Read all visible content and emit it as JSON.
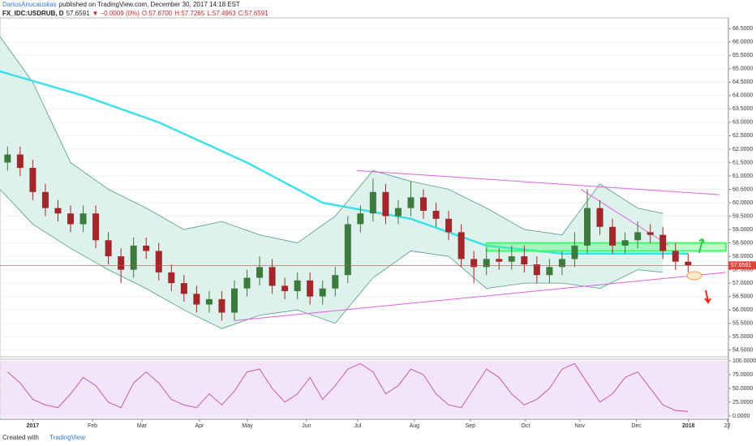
{
  "header": {
    "author": "DariusAnucauskas",
    "published": "published on TradingView.com, December 30, 2017 14:18 EST"
  },
  "symbol_line": {
    "symbol": "FX_IDC:USDRUB, D",
    "last": "57.6591",
    "change": "▼ −0.0009 (0%)",
    "open": "O:57.6700",
    "high": "H:57.7265",
    "low": "L:57.4963",
    "close": "C:57.6591"
  },
  "footer": {
    "created": "Created with",
    "brand": "TradingView"
  },
  "chart_data": [
    {
      "type": "candlestick",
      "up_color": "#3d7a3d",
      "down_color": "#a3262a",
      "xlim": [
        -2.6,
        55.2
      ],
      "ylim": [
        54.25,
        66.9
      ],
      "grid": true,
      "yticks": [
        {
          "value": 54.5,
          "label": "54.5000"
        },
        {
          "value": 55,
          "label": "55.0000"
        },
        {
          "value": 55.5,
          "label": "55.5000"
        },
        {
          "value": 56,
          "label": "56.0000"
        },
        {
          "value": 56.5,
          "label": "56.5000"
        },
        {
          "value": 57,
          "label": "57.0000"
        },
        {
          "value": 57.5,
          "label": "57.5000"
        },
        {
          "value": 58,
          "label": "58.0000"
        },
        {
          "value": 58.5,
          "label": "58.5000"
        },
        {
          "value": 59,
          "label": "59.0000"
        },
        {
          "value": 59.5,
          "label": "59.5000"
        },
        {
          "value": 60,
          "label": "60.0000"
        },
        {
          "value": 60.5,
          "label": "60.5000"
        },
        {
          "value": 61,
          "label": "61.0000"
        },
        {
          "value": 61.5,
          "label": "61.5000"
        },
        {
          "value": 62,
          "label": "62.0000"
        },
        {
          "value": 62.5,
          "label": "62.5000"
        },
        {
          "value": 63,
          "label": "63.0000"
        },
        {
          "value": 63.5,
          "label": "63.5000"
        },
        {
          "value": 64,
          "label": "64.0000"
        },
        {
          "value": 64.5,
          "label": "64.5000"
        },
        {
          "value": 65,
          "label": "65.0000"
        },
        {
          "value": 65.5,
          "label": "65.5000"
        },
        {
          "value": 66,
          "label": "66.0000"
        },
        {
          "value": 66.5,
          "label": "66.5000"
        }
      ],
      "x": [
        -2,
        -1,
        0,
        1,
        2,
        3,
        4,
        5,
        6,
        7,
        8,
        9,
        10,
        11,
        12,
        13,
        14,
        15,
        16,
        17,
        18,
        19,
        20,
        21,
        22,
        23,
        24,
        25,
        26,
        27,
        28,
        29,
        30,
        31,
        32,
        33,
        34,
        35,
        36,
        37,
        38,
        39,
        40,
        41,
        42,
        43,
        44,
        45,
        46,
        47,
        48,
        49,
        50,
        51,
        52
      ],
      "open": [
        61.5,
        61.8,
        61.3,
        60.4,
        59.8,
        59.6,
        59.2,
        59.6,
        58.6,
        58.0,
        57.5,
        58.4,
        58.2,
        57.4,
        57.0,
        56.6,
        56.2,
        56.4,
        55.9,
        56.8,
        57.2,
        57.6,
        56.9,
        56.7,
        57.1,
        56.5,
        56.8,
        57.3,
        59.2,
        59.6,
        60.4,
        59.5,
        59.8,
        60.2,
        59.7,
        59.4,
        58.9,
        57.9,
        57.6,
        57.9,
        57.8,
        58.0,
        57.7,
        57.3,
        57.6,
        57.9,
        58.4,
        59.8,
        59.1,
        58.4,
        58.6,
        58.9,
        58.8,
        58.2,
        57.8
      ],
      "high": [
        62.1,
        62.1,
        61.6,
        60.7,
        60.1,
        59.9,
        59.9,
        59.9,
        58.9,
        58.3,
        58.7,
        58.7,
        58.5,
        57.7,
        57.3,
        56.9,
        56.7,
        56.7,
        57.1,
        57.5,
        58.0,
        57.9,
        57.2,
        57.4,
        57.4,
        57.1,
        57.6,
        59.5,
        59.9,
        60.9,
        60.7,
        60.1,
        60.8,
        60.5,
        60.0,
        59.7,
        59.2,
        58.2,
        58.3,
        58.3,
        58.4,
        58.4,
        58.0,
        57.9,
        58.2,
        58.9,
        60.5,
        60.1,
        59.4,
        58.9,
        59.3,
        59.2,
        59.1,
        58.5,
        58.1
      ],
      "low": [
        61.2,
        61.0,
        60.1,
        59.5,
        59.3,
        58.9,
        58.9,
        58.3,
        57.7,
        57.0,
        57.2,
        57.9,
        57.1,
        56.7,
        56.3,
        55.9,
        55.9,
        55.6,
        55.6,
        56.5,
        56.9,
        56.6,
        56.4,
        56.4,
        56.2,
        56.2,
        56.5,
        57.0,
        58.9,
        59.3,
        59.2,
        59.2,
        59.5,
        59.4,
        59.1,
        58.6,
        57.6,
        57.0,
        57.3,
        57.5,
        57.5,
        57.4,
        57.0,
        57.0,
        57.3,
        57.6,
        58.1,
        58.8,
        58.1,
        58.1,
        58.3,
        58.5,
        57.9,
        57.5,
        57.4
      ],
      "close": [
        61.8,
        61.3,
        60.4,
        59.8,
        59.6,
        59.2,
        59.6,
        58.6,
        58.0,
        57.5,
        58.4,
        58.2,
        57.4,
        57.0,
        56.6,
        56.2,
        56.4,
        55.9,
        56.8,
        57.2,
        57.6,
        56.9,
        56.7,
        57.1,
        56.5,
        56.8,
        57.3,
        59.2,
        59.6,
        60.4,
        59.5,
        59.8,
        60.2,
        59.7,
        59.4,
        58.9,
        57.9,
        57.6,
        57.9,
        57.8,
        58.0,
        57.7,
        57.3,
        57.6,
        57.9,
        58.4,
        59.8,
        59.1,
        58.4,
        58.6,
        58.9,
        58.8,
        58.2,
        57.8,
        57.6591
      ],
      "bands": {
        "color": "#4f9a8c",
        "fill": "#dff1ec",
        "x": [
          -2.6,
          0,
          3,
          6,
          9,
          12,
          15,
          18,
          21,
          24,
          27,
          30,
          33,
          36,
          39,
          42,
          45,
          48,
          50
        ],
        "upper": [
          66.2,
          64.5,
          61.5,
          60.5,
          59.8,
          59.0,
          59.3,
          58.8,
          58.5,
          59.5,
          61.2,
          60.8,
          60.5,
          59.8,
          59.0,
          58.8,
          60.7,
          59.8,
          59.6
        ],
        "lower": [
          60.5,
          59.2,
          58.3,
          57.5,
          56.8,
          56.0,
          55.3,
          55.8,
          56.0,
          55.5,
          57.2,
          58.2,
          58.0,
          56.8,
          57.0,
          57.0,
          56.8,
          57.5,
          57.4
        ]
      },
      "sma": {
        "color": "#3ee0e8",
        "x": [
          -2.6,
          4,
          10,
          17,
          23,
          30,
          36,
          42,
          52
        ],
        "values": [
          64.9,
          64.0,
          63.0,
          61.5,
          60.0,
          59.4,
          58.4,
          58.1,
          58.1
        ]
      },
      "trendlines": [
        {
          "color": "#e060e0",
          "x": [
            16,
            55
          ],
          "values": [
            55.6,
            57.4
          ]
        },
        {
          "color": "#e060e0",
          "x": [
            25.7,
            54.5
          ],
          "values": [
            61.2,
            60.3
          ]
        },
        {
          "color": "#e060e0",
          "x": [
            43.5,
            50.5
          ],
          "values": [
            60.5,
            58.4
          ]
        }
      ],
      "zone": {
        "color": "#3dfc6a",
        "x": [
          36,
          55
        ],
        "values": [
          58.2,
          58.5
        ]
      },
      "last": 57.6591,
      "last_color": "#e0443a"
    },
    {
      "type": "line",
      "xlim": [
        -2.6,
        55.2
      ],
      "ylim": [
        -6,
        103
      ],
      "grid": true,
      "fill": "#f0d8f7",
      "yticks": [
        {
          "value": 0,
          "label": "0.0000"
        },
        {
          "value": 25,
          "label": "25.0000"
        },
        {
          "value": 50,
          "label": "50.0000"
        },
        {
          "value": 75,
          "label": "75.0000"
        },
        {
          "value": 100,
          "label": "100.0000"
        }
      ],
      "xticks": [
        {
          "value": 0,
          "label": "2017"
        },
        {
          "value": 4.74,
          "label": "Feb"
        },
        {
          "value": 8.66,
          "label": "Mar"
        },
        {
          "value": 13.23,
          "label": "Apr"
        },
        {
          "value": 17.03,
          "label": "May"
        },
        {
          "value": 21.72,
          "label": "Jun"
        },
        {
          "value": 25.78,
          "label": "Jul"
        },
        {
          "value": 30.28,
          "label": "Aug"
        },
        {
          "value": 34.72,
          "label": "Sep"
        },
        {
          "value": 39.1,
          "label": "Oct"
        },
        {
          "value": 43.41,
          "label": "Nov"
        },
        {
          "value": 47.9,
          "label": "Dec"
        },
        {
          "value": 52.03,
          "label": "2018"
        },
        {
          "value": 55.12,
          "label": "22"
        }
      ],
      "x": [
        -2,
        -1,
        0,
        1,
        2,
        3,
        4,
        5,
        6,
        7,
        8,
        9,
        10,
        11,
        12,
        13,
        14,
        15,
        16,
        17,
        18,
        19,
        20,
        21,
        22,
        23,
        24,
        25,
        26,
        27,
        28,
        29,
        30,
        31,
        32,
        33,
        34,
        35,
        36,
        37,
        38,
        39,
        40,
        41,
        42,
        43,
        44,
        45,
        46,
        47,
        48,
        49,
        50,
        51,
        52
      ],
      "series": [
        {
          "color": "#c25ca8",
          "values": [
            80,
            60,
            30,
            20,
            15,
            40,
            70,
            55,
            25,
            15,
            60,
            80,
            60,
            30,
            20,
            15,
            40,
            20,
            45,
            80,
            85,
            50,
            25,
            40,
            70,
            30,
            55,
            85,
            95,
            80,
            40,
            55,
            85,
            75,
            40,
            20,
            15,
            50,
            85,
            70,
            40,
            20,
            30,
            50,
            85,
            95,
            60,
            25,
            40,
            70,
            80,
            50,
            20,
            10,
            8
          ]
        }
      ]
    }
  ]
}
